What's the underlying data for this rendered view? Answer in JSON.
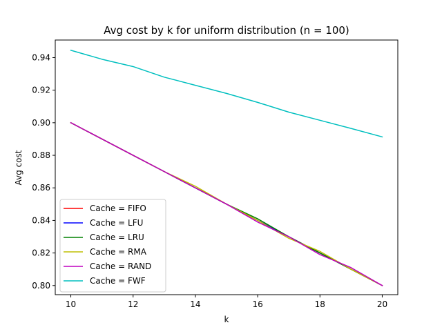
{
  "chart_data": {
    "type": "line",
    "title": "Avg cost by k for uniform distribution (n = 100)",
    "xlabel": "k",
    "ylabel": "Avg cost",
    "xlim": [
      9.5,
      20.5
    ],
    "ylim": [
      0.7944,
      0.9508
    ],
    "xticks": [
      10,
      12,
      14,
      16,
      18,
      20
    ],
    "xtick_labels": [
      "10",
      "12",
      "14",
      "16",
      "18",
      "20"
    ],
    "yticks": [
      0.8,
      0.82,
      0.84,
      0.86,
      0.88,
      0.9,
      0.92,
      0.94
    ],
    "ytick_labels": [
      "0.80",
      "0.82",
      "0.84",
      "0.86",
      "0.88",
      "0.90",
      "0.92",
      "0.94"
    ],
    "grid": false,
    "legend_position": "lower-left",
    "x": [
      10,
      11,
      12,
      13,
      14,
      15,
      16,
      17,
      18,
      19,
      20
    ],
    "series": [
      {
        "name": "Cache = FIFO",
        "color": "#ff0000",
        "values": [
          0.9,
          0.89,
          0.88,
          0.87,
          0.86,
          0.85,
          0.84,
          0.83,
          0.82,
          0.81,
          0.8
        ]
      },
      {
        "name": "Cache = LFU",
        "color": "#0000ff",
        "values": [
          0.9,
          0.89,
          0.88,
          0.87,
          0.86,
          0.85,
          0.84,
          0.83,
          0.82,
          0.81,
          0.8
        ]
      },
      {
        "name": "Cache = LRU",
        "color": "#008000",
        "values": [
          0.9,
          0.89,
          0.88,
          0.87,
          0.86,
          0.85,
          0.841,
          0.83,
          0.82,
          0.81,
          0.8
        ]
      },
      {
        "name": "Cache = RMA",
        "color": "#bfbf00",
        "values": [
          0.9,
          0.89,
          0.88,
          0.87,
          0.861,
          0.85,
          0.84,
          0.829,
          0.821,
          0.81,
          0.8
        ]
      },
      {
        "name": "Cache = RAND",
        "color": "#bf00bf",
        "values": [
          0.9,
          0.89,
          0.88,
          0.87,
          0.86,
          0.85,
          0.839,
          0.83,
          0.819,
          0.811,
          0.8
        ]
      },
      {
        "name": "Cache = FWF",
        "color": "#00bfbf",
        "values": [
          0.9445,
          0.939,
          0.9345,
          0.928,
          0.923,
          0.918,
          0.9125,
          0.9065,
          0.9015,
          0.8965,
          0.8913
        ]
      }
    ]
  }
}
